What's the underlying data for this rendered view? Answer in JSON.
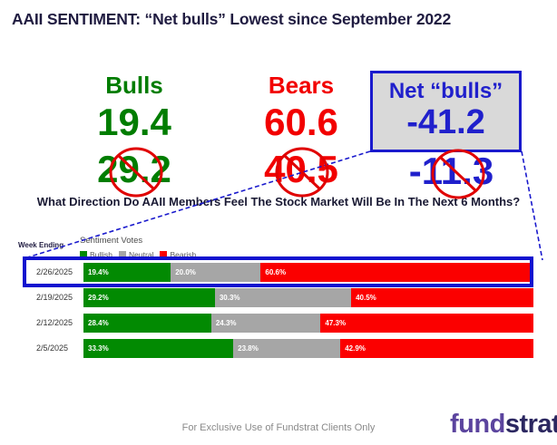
{
  "title": "AAII SENTIMENT: “Net bulls” Lowest since September 2022",
  "summary": {
    "bulls": {
      "label": "Bulls",
      "current": "19.4",
      "previous": "29.2"
    },
    "bears": {
      "label": "Bears",
      "current": "60.6",
      "previous": "40.5"
    },
    "net_bulls": {
      "label": "Net “bulls”",
      "current": "-41.2",
      "previous": "-11.3"
    }
  },
  "question": "What Direction Do AAII Members Feel The Stock Market Will Be In The Next 6 Months?",
  "chart_data": {
    "type": "bar",
    "orientation": "horizontal-stacked",
    "title": "Sentiment Votes",
    "row_header": "Week Ending",
    "categories": [
      "2/26/2025",
      "2/19/2025",
      "2/12/2025",
      "2/5/2025"
    ],
    "series": [
      {
        "name": "Bullish",
        "values": [
          19.4,
          29.2,
          28.4,
          33.3
        ]
      },
      {
        "name": "Neutral",
        "values": [
          20.0,
          30.3,
          24.3,
          23.8
        ]
      },
      {
        "name": "Bearish",
        "values": [
          60.6,
          40.5,
          47.3,
          42.9
        ]
      }
    ],
    "legend": [
      {
        "label": "Bullish",
        "color": "#028a02"
      },
      {
        "label": "Neutral",
        "color": "#a6a6a6"
      },
      {
        "label": "Bearish",
        "color": "#fb0000"
      }
    ],
    "value_suffix": "%",
    "xlim": [
      0,
      100
    ],
    "highlighted_category": "2/26/2025"
  },
  "footer": {
    "disclaimer": "For Exclusive Use of Fundstrat Clients Only",
    "logo_part1": "fund",
    "logo_part2": "strat"
  },
  "colors": {
    "title_text": "#201c41",
    "bulls_green": "#007d00",
    "bears_red": "#f20000",
    "net_blue": "#2020cc",
    "box_background": "#d9d9d9",
    "box_border": "#1a1acd",
    "highlight_border": "#1111cf",
    "strike_red": "#e00000",
    "dashed_line_blue": "#1a1acd",
    "logo_purple": "#5b449e",
    "logo_dark": "#2b2760"
  }
}
